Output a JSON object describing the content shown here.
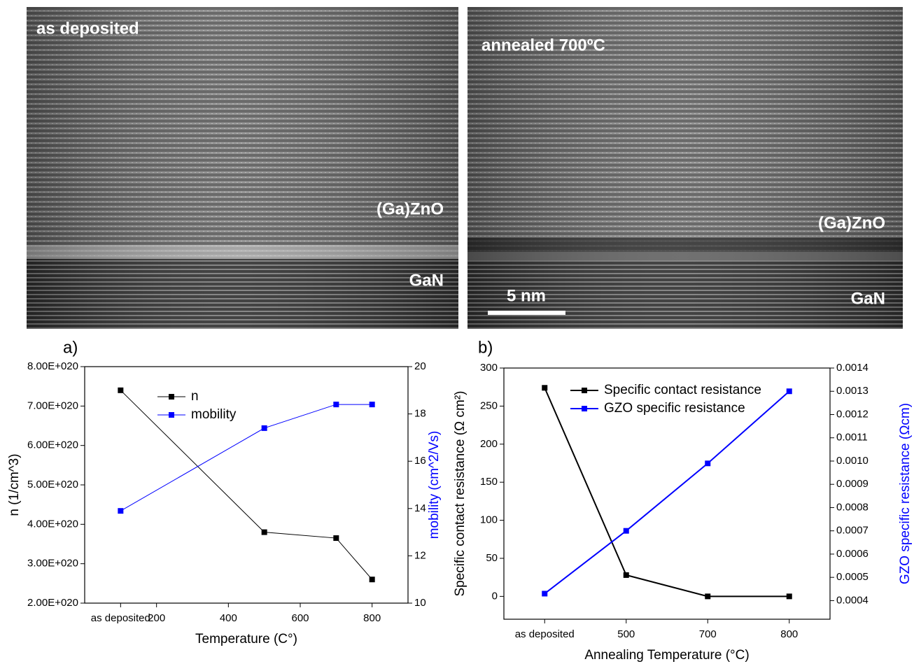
{
  "images": [
    {
      "labels": [
        "as deposited",
        "(Ga)ZnO",
        "GaN"
      ]
    },
    {
      "labels": [
        "annealed 700ºC",
        "(Ga)ZnO",
        "GaN"
      ],
      "scale_bar": "5 nm"
    }
  ],
  "chart_data": [
    {
      "type": "line",
      "panel_label": "a)",
      "x": [
        100,
        500,
        700,
        800
      ],
      "xlim": [
        0,
        900
      ],
      "xticks": [
        {
          "value": 100,
          "label": "as deposited"
        },
        200,
        400,
        600,
        800
      ],
      "x_label": "Temperature (C°)",
      "y_label": "n (1/cm^3)",
      "y2_label": "mobility (cm^2/Vs)",
      "y2_label_color": "#0000ff",
      "ylim": [
        2e+20,
        8e+20
      ],
      "yticks": [
        {
          "value": 2e+20,
          "label": "2.00E+020"
        },
        {
          "value": 3e+20,
          "label": "3.00E+020"
        },
        {
          "value": 4e+20,
          "label": "4.00E+020"
        },
        {
          "value": 5e+20,
          "label": "5.00E+020"
        },
        {
          "value": 6e+20,
          "label": "6.00E+020"
        },
        {
          "value": 7e+20,
          "label": "7.00E+020"
        },
        {
          "value": 8e+20,
          "label": "8.00E+020"
        }
      ],
      "y2lim": [
        10,
        20
      ],
      "y2ticks": [
        10,
        12,
        14,
        16,
        18,
        20
      ],
      "series": [
        {
          "name": "n",
          "color": "#000000",
          "values": [
            7.4e+20,
            3.8e+20,
            3.65e+20,
            2.6e+20
          ]
        },
        {
          "name": "mobility",
          "color": "#0000ff",
          "axis": "y2",
          "values": [
            13.9,
            17.4,
            18.4,
            18.4
          ]
        }
      ]
    },
    {
      "type": "line",
      "panel_label": "b)",
      "categories": [
        "as deposited",
        "500",
        "700",
        "800"
      ],
      "x_label": "Annealing Temperature (°C)",
      "y_label": "Specific contact resistance (Ω cm²)",
      "y2_label": "GZO specific resistance (Ωcm)",
      "y2_label_color": "#0000ff",
      "ylim": [
        -30,
        300
      ],
      "yticks": [
        0,
        50,
        100,
        150,
        200,
        250,
        300
      ],
      "y2lim": [
        0.00032,
        0.0014
      ],
      "y2ticks": [
        0.0004,
        0.0005,
        0.0006,
        0.0007,
        0.0008,
        0.0009,
        {
          "value": 0.001,
          "label": "0.0010"
        },
        0.0011,
        0.0012,
        0.0013,
        0.0014
      ],
      "series": [
        {
          "name": "Specific contact resistance",
          "color": "#000000",
          "values": [
            274,
            28,
            0,
            0
          ]
        },
        {
          "name": "GZO specific resistance",
          "color": "#0000ff",
          "axis": "y2",
          "values": [
            0.00043,
            0.0007,
            0.00099,
            0.0013
          ]
        }
      ]
    }
  ]
}
